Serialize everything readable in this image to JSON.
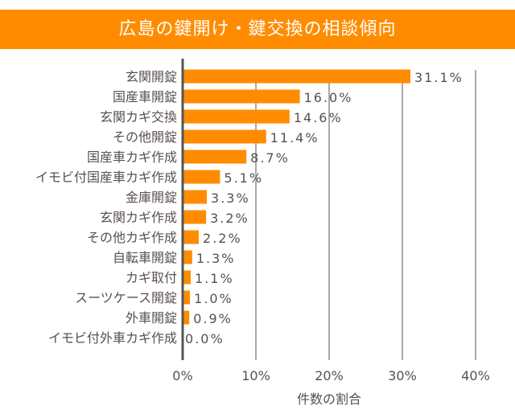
{
  "chart_data": {
    "type": "bar",
    "orientation": "horizontal",
    "title": "広島の鍵開け・鍵交換の相談傾向",
    "xlabel": "件数の割合",
    "ylabel": "",
    "categories": [
      "玄関開錠",
      "国産車開錠",
      "玄関カギ交換",
      "その他開錠",
      "国産車カギ作成",
      "イモビ付国産車カギ作成",
      "金庫開錠",
      "玄関カギ作成",
      "その他カギ作成",
      "自転車開錠",
      "カギ取付",
      "スーツケース開錠",
      "外車開錠",
      "イモビ付外車カギ作成"
    ],
    "values": [
      31.1,
      16.0,
      14.6,
      11.4,
      8.7,
      5.1,
      3.3,
      3.2,
      2.2,
      1.3,
      1.1,
      1.0,
      0.9,
      0.0
    ],
    "data_labels": [
      "31.1%",
      "16.0%",
      "14.6%",
      "11.4%",
      "8.7%",
      "5.1%",
      "3.3%",
      "3.2%",
      "2.2%",
      "1.3%",
      "1.1%",
      "1.0%",
      "0.9%",
      "0.0%"
    ],
    "xlim": [
      0,
      40
    ],
    "xticks": [
      "0%",
      "10%",
      "20%",
      "30%",
      "40%"
    ],
    "grid": true,
    "legend": "none",
    "colors": {
      "bar": "#FF8C00",
      "title_bg": "#FF8C00",
      "axis": "#555555",
      "grid": "#aaaaaa",
      "text": "#5a5050"
    }
  }
}
